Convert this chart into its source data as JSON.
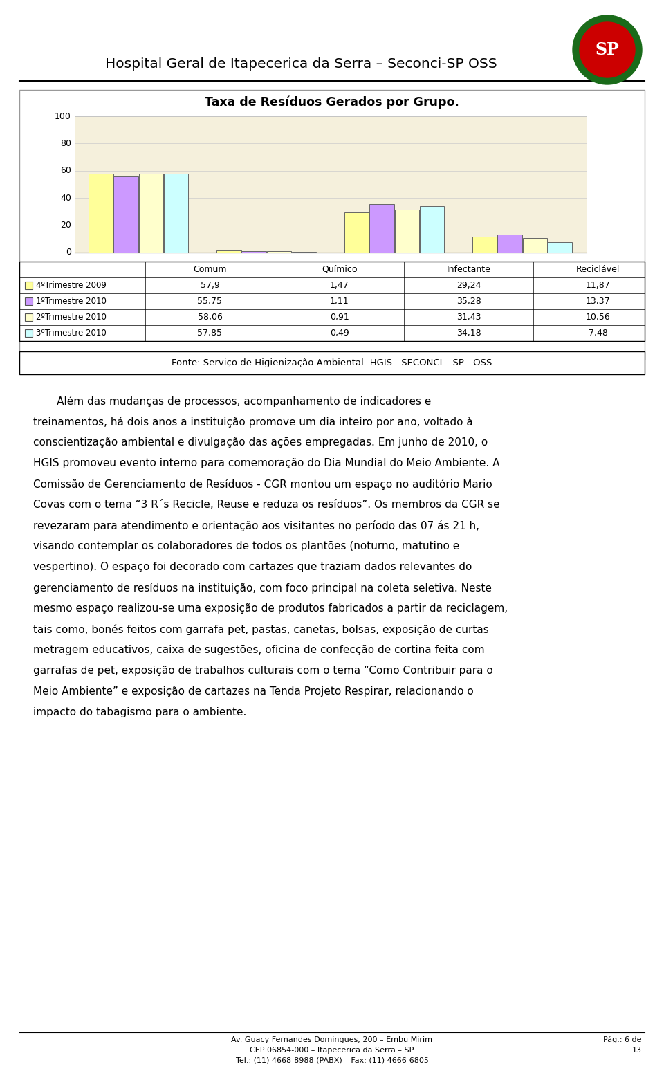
{
  "page_title": "Hospital Geral de Itapecerica da Serra – Seconci-SP OSS",
  "chart_title": "Taxa de Resíduos Gerados por Grupo.",
  "categories": [
    "Comum",
    "Químico",
    "Infectante",
    "Reciclável"
  ],
  "series": [
    {
      "label": "4ºTrimestre 2009",
      "color": "#FFFF99",
      "values": [
        57.9,
        1.47,
        29.24,
        11.87
      ]
    },
    {
      "label": "1ºTrimestre 2010",
      "color": "#CC99FF",
      "values": [
        55.75,
        1.11,
        35.28,
        13.37
      ]
    },
    {
      "label": "2ºTrimestre 2010",
      "color": "#FFFFCC",
      "values": [
        58.06,
        0.91,
        31.43,
        10.56
      ]
    },
    {
      "label": "3ºTrimestre 2010",
      "color": "#CCFFFF",
      "values": [
        57.85,
        0.49,
        34.18,
        7.48
      ]
    }
  ],
  "table_rows": [
    [
      "4ºTrimestre 2009",
      "57,9",
      "1,47",
      "29,24",
      "11,87"
    ],
    [
      "1ºTrimestre 2010",
      "55,75",
      "1,11",
      "35,28",
      "13,37"
    ],
    [
      "2ºTrimestre 2010",
      "58,06",
      "0,91",
      "31,43",
      "10,56"
    ],
    [
      "3ºTrimestre 2010",
      "57,85",
      "0,49",
      "34,18",
      "7,48"
    ]
  ],
  "yticks": [
    0,
    20,
    40,
    60,
    80,
    100
  ],
  "chart_bg": "#F5F0DC",
  "fonte_text": "Fonte: Serviço de Higienização Ambiental- HGIS - SECONCI – SP - OSS",
  "body_lines": [
    "       Além das mudanças de processos, acompanhamento de indicadores e",
    "treinamentos, há dois anos a instituição promove um dia inteiro por ano, voltado à",
    "conscientização ambiental e divulgação das ações empregadas. Em junho de 2010, o",
    "HGIS promoveu evento interno para comemoração do Dia Mundial do Meio Ambiente. A",
    "Comissão de Gerenciamento de Resíduos - CGR montou um espaço no auditório Mario",
    "Covas com o tema “3 R´s Recicle, Reuse e reduza os resíduos”. Os membros da CGR se",
    "revezaram para atendimento e orientação aos visitantes no período das 07 ás 21 h,",
    "visando contemplar os colaboradores de todos os plantões (noturno, matutino e",
    "vespertino). O espaço foi decorado com cartazes que traziam dados relevantes do",
    "gerenciamento de resíduos na instituição, com foco principal na coleta seletiva. Neste",
    "mesmo espaço realizou-se uma exposição de produtos fabricados a partir da reciclagem,",
    "tais como, bonés feitos com garrafa pet, pastas, canetas, bolsas, exposição de curtas",
    "metragem educativos, caixa de sugestões, oficina de confecção de cortina feita com",
    "garrafas de pet, exposição de trabalhos culturais com o tema “Como Contribuir para o",
    "Meio Ambiente” e exposição de cartazes na Tenda Projeto Respirar, relacionando o",
    "impacto do tabagismo para o ambiente."
  ],
  "footer_left": "Av. Guacy Fernandes Domingues, 200 – Embu Mirim\nCEP 06854-000 – Itapecerica da Serra – SP\nTel.: (11) 4668-8988 (PABX) – Fax: (11) 4666-6805",
  "footer_right": "Pág.: 6 de\n13",
  "bg_color": "#FFFFFF",
  "text_color": "#000000"
}
